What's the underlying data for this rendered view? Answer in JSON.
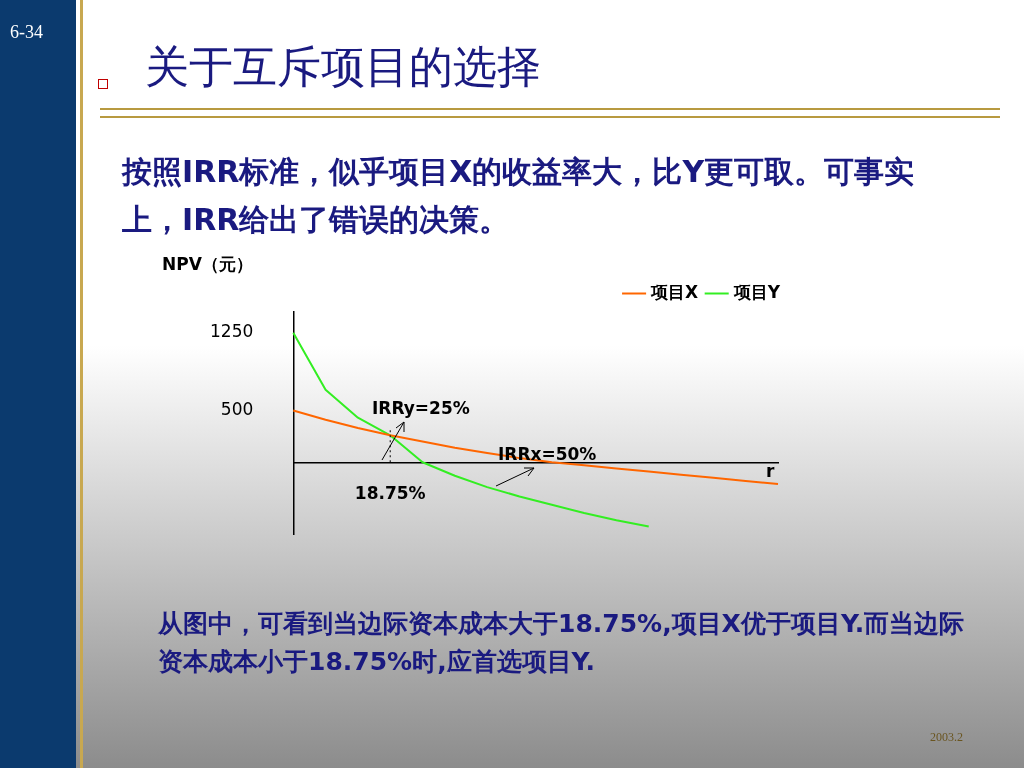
{
  "chart_data": {
    "type": "line",
    "title": "关于互斥项目的选择",
    "subtitle": "按照IRR标准，似乎项目X的收益率大，比Y更可取。可事实上，IRR给出了错误的决策。",
    "xlabel": "r",
    "ylabel": "NPV（元）",
    "categories": [
      null,
      null,
      null,
      "18.75%",
      null,
      null,
      null,
      null,
      null,
      null,
      null,
      null,
      null,
      null,
      null,
      null
    ],
    "series": [
      {
        "name": "项目X",
        "color": "#ff6600",
        "values": [
          500,
          410,
          330,
          260,
          200,
          140,
          90,
          40,
          0,
          -30,
          -60,
          -90,
          -120,
          -150,
          -180,
          -210
        ]
      },
      {
        "name": "项目Y",
        "color": "#33ee22",
        "values": [
          1250,
          700,
          430,
          260,
          0,
          -130,
          -240,
          -330,
          -410,
          -490,
          -560,
          -620,
          null,
          null,
          null,
          null
        ]
      }
    ],
    "ylim": [
      -700,
      1450
    ],
    "yticks": [
      500,
      1250
    ],
    "grid": false,
    "legend": "top right",
    "marker": "none",
    "line_style": "solid",
    "ref_lines": [
      {
        "axis": "x",
        "value": "18.75%",
        "line_style": "dotted",
        "color": "#000000"
      }
    ],
    "annotations": [
      "6-34",
      "IRRy=25%",
      "IRRx=50%",
      "从图中，可看到当边际资本成本大于18.75%,项目X优于项目Y.而当边际资本成本小于18.75%时,应首选项目Y.",
      "2003.2"
    ]
  }
}
